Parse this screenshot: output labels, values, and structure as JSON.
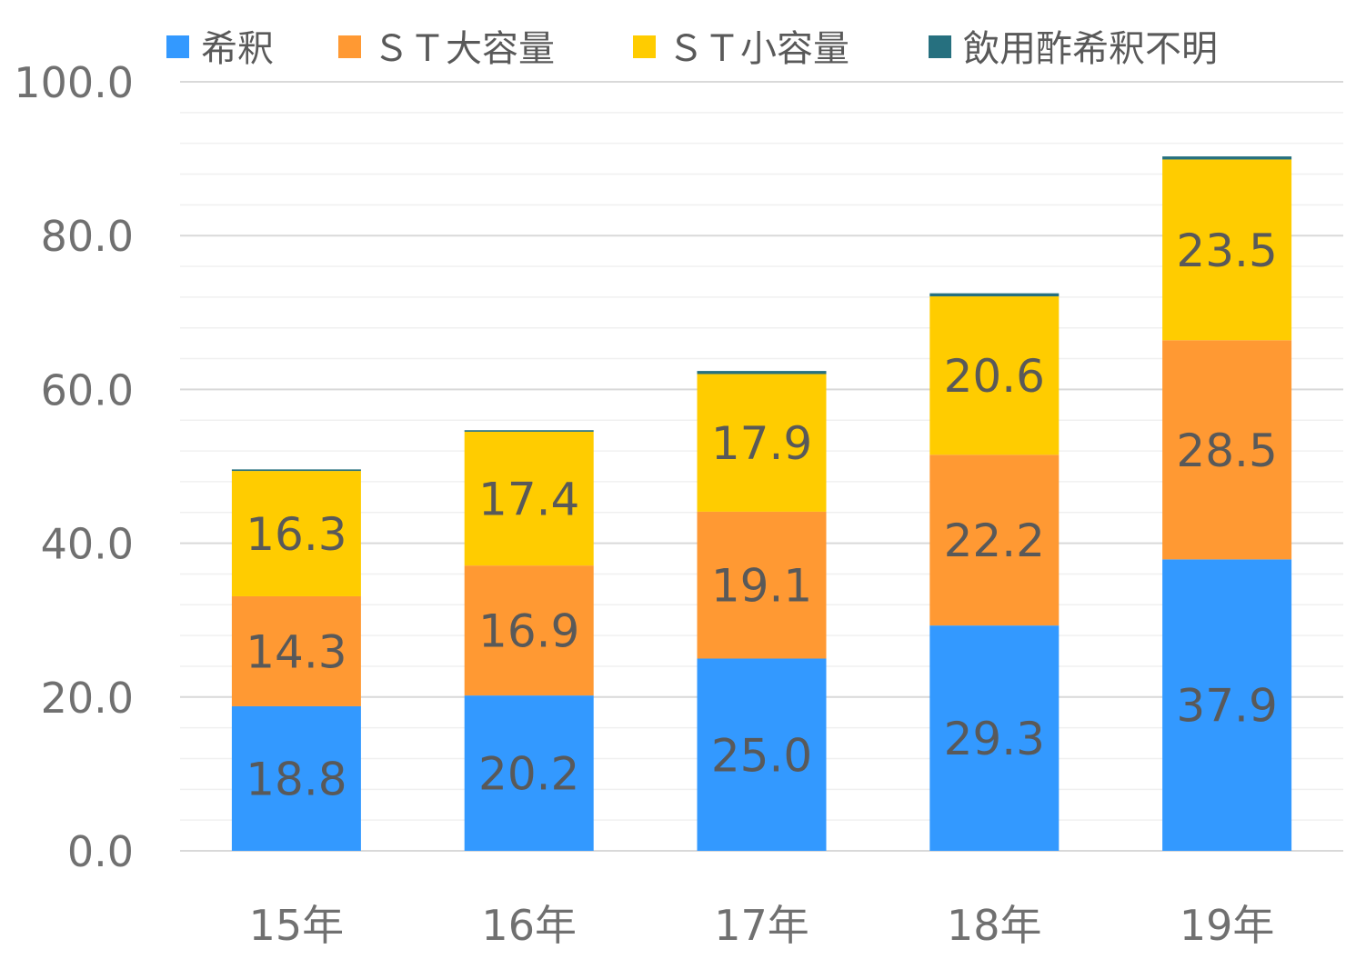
{
  "chart_data": {
    "type": "bar",
    "stacked": true,
    "categories": [
      "15年",
      "16年",
      "17年",
      "18年",
      "19年"
    ],
    "series": [
      {
        "name": "希釈",
        "color": "#3399ff",
        "values": [
          18.8,
          20.2,
          25.0,
          29.3,
          37.9
        ],
        "labels": [
          "18.8",
          "20.2",
          "25.0",
          "29.3",
          "37.9"
        ]
      },
      {
        "name": "ＳＴ大容量",
        "color": "#ff9933",
        "values": [
          14.3,
          16.9,
          19.1,
          22.2,
          28.5
        ],
        "labels": [
          "14.3",
          "16.9",
          "19.1",
          "22.2",
          "28.5"
        ]
      },
      {
        "name": "ＳＴ小容量",
        "color": "#ffcc00",
        "values": [
          16.3,
          17.4,
          17.9,
          20.6,
          23.5
        ],
        "labels": [
          "16.3",
          "17.4",
          "17.9",
          "20.6",
          "23.5"
        ]
      },
      {
        "name": "飲用酢希釈不明",
        "color": "#26707f",
        "values": [
          0.2,
          0.2,
          0.4,
          0.4,
          0.4
        ],
        "labels": [
          "",
          "",
          "",
          "",
          ""
        ]
      }
    ],
    "ylim": [
      0,
      100
    ],
    "yticks": [
      "0.0",
      "20.0",
      "40.0",
      "60.0",
      "80.0",
      "100.0"
    ],
    "ytick_values": [
      0,
      20,
      40,
      60,
      80,
      100
    ],
    "minor_grid_step": 4,
    "grid": true,
    "legend": "top",
    "title": "",
    "xlabel": "",
    "ylabel": ""
  }
}
